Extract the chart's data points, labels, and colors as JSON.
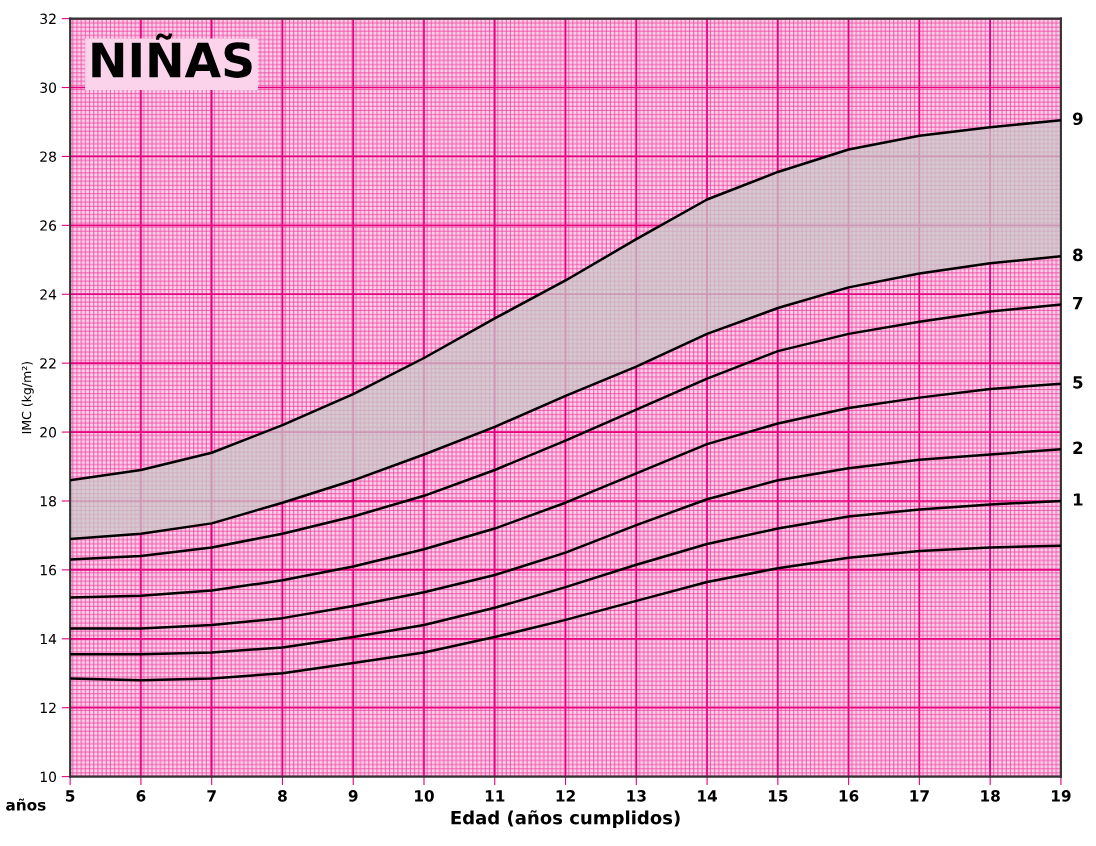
{
  "chart_data": {
    "type": "line",
    "title": "NIÑAS",
    "xlabel": "Edad (años cumplidos)",
    "ylabel": "IMC (kg/m²)",
    "annotations": [
      "años"
    ],
    "x": [
      5,
      6,
      7,
      8,
      9,
      10,
      11,
      12,
      13,
      14,
      15,
      16,
      17,
      18,
      19
    ],
    "series": [
      {
        "name": "9",
        "color": "#000000",
        "values": [
          18.6,
          18.9,
          19.4,
          20.2,
          21.1,
          22.15,
          23.3,
          24.4,
          25.6,
          26.75,
          27.55,
          28.2,
          28.6,
          28.85,
          29.05
        ],
        "lower": [
          16.9,
          17.05,
          17.35,
          17.95,
          18.6,
          19.35,
          20.15,
          21.05,
          21.9,
          22.85,
          23.6,
          24.2,
          24.6,
          24.9,
          25.1
        ],
        "upper": [
          18.6,
          18.9,
          19.4,
          20.2,
          21.1,
          22.15,
          23.3,
          24.4,
          25.6,
          26.75,
          27.55,
          28.2,
          28.6,
          28.85,
          29.05
        ]
      },
      {
        "name": "8",
        "color": "#000000",
        "values": [
          16.9,
          17.05,
          17.35,
          17.95,
          18.6,
          19.35,
          20.15,
          21.05,
          21.9,
          22.85,
          23.6,
          24.2,
          24.6,
          24.9,
          25.1
        ]
      },
      {
        "name": "7",
        "color": "#000000",
        "values": [
          16.3,
          16.4,
          16.65,
          17.05,
          17.55,
          18.15,
          18.9,
          19.75,
          20.65,
          21.55,
          22.35,
          22.85,
          23.2,
          23.5,
          23.7
        ]
      },
      {
        "name": "5",
        "color": "#000000",
        "values": [
          15.2,
          15.25,
          15.4,
          15.7,
          16.1,
          16.6,
          17.2,
          17.95,
          18.8,
          19.65,
          20.25,
          20.7,
          21.0,
          21.25,
          21.4
        ]
      },
      {
        "name": "2",
        "color": "#000000",
        "values": [
          14.3,
          14.3,
          14.4,
          14.6,
          14.95,
          15.35,
          15.85,
          16.5,
          17.3,
          18.05,
          18.6,
          18.95,
          19.2,
          19.35,
          19.5
        ]
      },
      {
        "name": "1",
        "color": "#000000",
        "values": [
          13.55,
          13.55,
          13.6,
          13.75,
          14.05,
          14.4,
          14.9,
          15.5,
          16.15,
          16.75,
          17.2,
          17.55,
          17.75,
          17.9,
          18.0
        ]
      },
      {
        "color": "#000000",
        "values": [
          12.85,
          12.8,
          12.85,
          13.0,
          13.3,
          13.6,
          14.05,
          14.55,
          15.1,
          15.65,
          16.05,
          16.35,
          16.55,
          16.65,
          16.7
        ]
      }
    ],
    "xlim": [
      5,
      19
    ],
    "xticks": [
      5,
      6,
      7,
      8,
      9,
      10,
      11,
      12,
      13,
      14,
      15,
      16,
      17,
      18,
      19
    ],
    "ylim": [
      10,
      32
    ],
    "yticks": [
      10,
      12,
      14,
      16,
      18,
      20,
      22,
      24,
      26,
      28,
      30,
      32
    ],
    "grid": true,
    "legend": false,
    "line_style": "solid",
    "marker": "none"
  }
}
